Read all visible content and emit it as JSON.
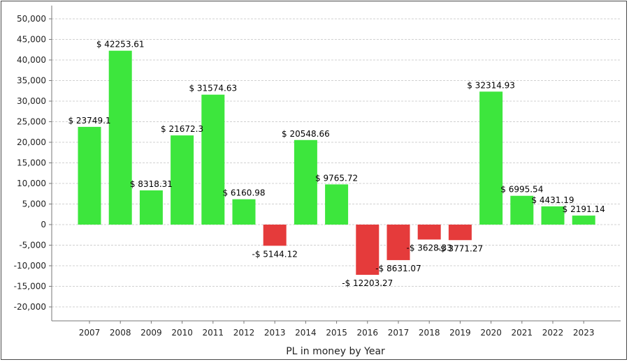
{
  "chart_data": {
    "type": "bar",
    "title": "",
    "xlabel": "PL in money by Year",
    "ylabel": "",
    "ylim": [
      -25000,
      52000
    ],
    "yticks": [
      50000,
      45000,
      40000,
      35000,
      30000,
      25000,
      20000,
      15000,
      10000,
      5000,
      0,
      -5000,
      -10000,
      -15000,
      -20000
    ],
    "ytick_labels": [
      "50,000",
      "45,000",
      "40,000",
      "35,000",
      "30,000",
      "25,000",
      "20,000",
      "15,000",
      "10,000",
      "5,000",
      "0",
      "-5,000",
      "-10,000",
      "-15,000",
      "-20,000"
    ],
    "grid": true,
    "legend": "none",
    "categories": [
      "2007",
      "2008",
      "2009",
      "2010",
      "2011",
      "2012",
      "2013",
      "2014",
      "2015",
      "2016",
      "2017",
      "2018",
      "2019",
      "2020",
      "2021",
      "2022",
      "2023"
    ],
    "values": [
      23749.1,
      42253.61,
      8318.31,
      21672.3,
      31574.63,
      6160.98,
      -5144.12,
      20548.66,
      9765.72,
      -12203.27,
      -8631.07,
      -3628.33,
      -3771.27,
      32314.93,
      6995.54,
      4431.19,
      2191.14
    ],
    "data_labels": [
      "$ 23749.1",
      "$ 42253.61",
      "$ 8318.31",
      "$ 21672.3",
      "$ 31574.63",
      "$ 6160.98",
      "-$ 5144.12",
      "$ 20548.66",
      "$ 9765.72",
      "-$ 12203.27",
      "-$ 8631.07",
      "-$ 3628.33",
      "-$ 3771.27",
      "$ 32314.93",
      "$ 6995.54",
      "$ 4431.19",
      "$ 2191.14"
    ],
    "colors": {
      "positive": "#3de63d",
      "negative": "#e53b3b",
      "grid": "#d0d0d0",
      "plot_bg": "#ffffff",
      "axis": "#777777"
    }
  }
}
